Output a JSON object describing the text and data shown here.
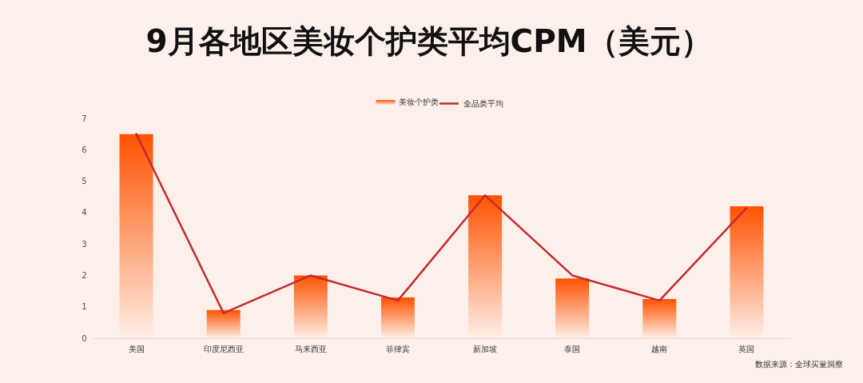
{
  "chart_data": {
    "type": "bar",
    "title": "9月各地区美妆个护类平均CPM（美元）",
    "categories": [
      "美国",
      "印度尼西亚",
      "马来西亚",
      "菲律宾",
      "新加坡",
      "泰国",
      "越南",
      "英国"
    ],
    "series": [
      {
        "name": "美妆个护类",
        "color": "#ff5200",
        "values": [
          6.5,
          0.9,
          2.0,
          1.3,
          4.55,
          1.9,
          1.25,
          4.2
        ]
      },
      {
        "name": "全品类平均",
        "type": "line",
        "color": "#c42a30",
        "values": [
          6.5,
          0.8,
          2.0,
          1.2,
          4.55,
          2.0,
          1.2,
          4.15
        ]
      }
    ],
    "ylim": [
      0,
      7
    ],
    "yticks": [
      0,
      1,
      2,
      3,
      4,
      5,
      6,
      7
    ],
    "grid": false,
    "legend": "top",
    "annotations": [
      "数据来源：全球买量洞察"
    ]
  }
}
